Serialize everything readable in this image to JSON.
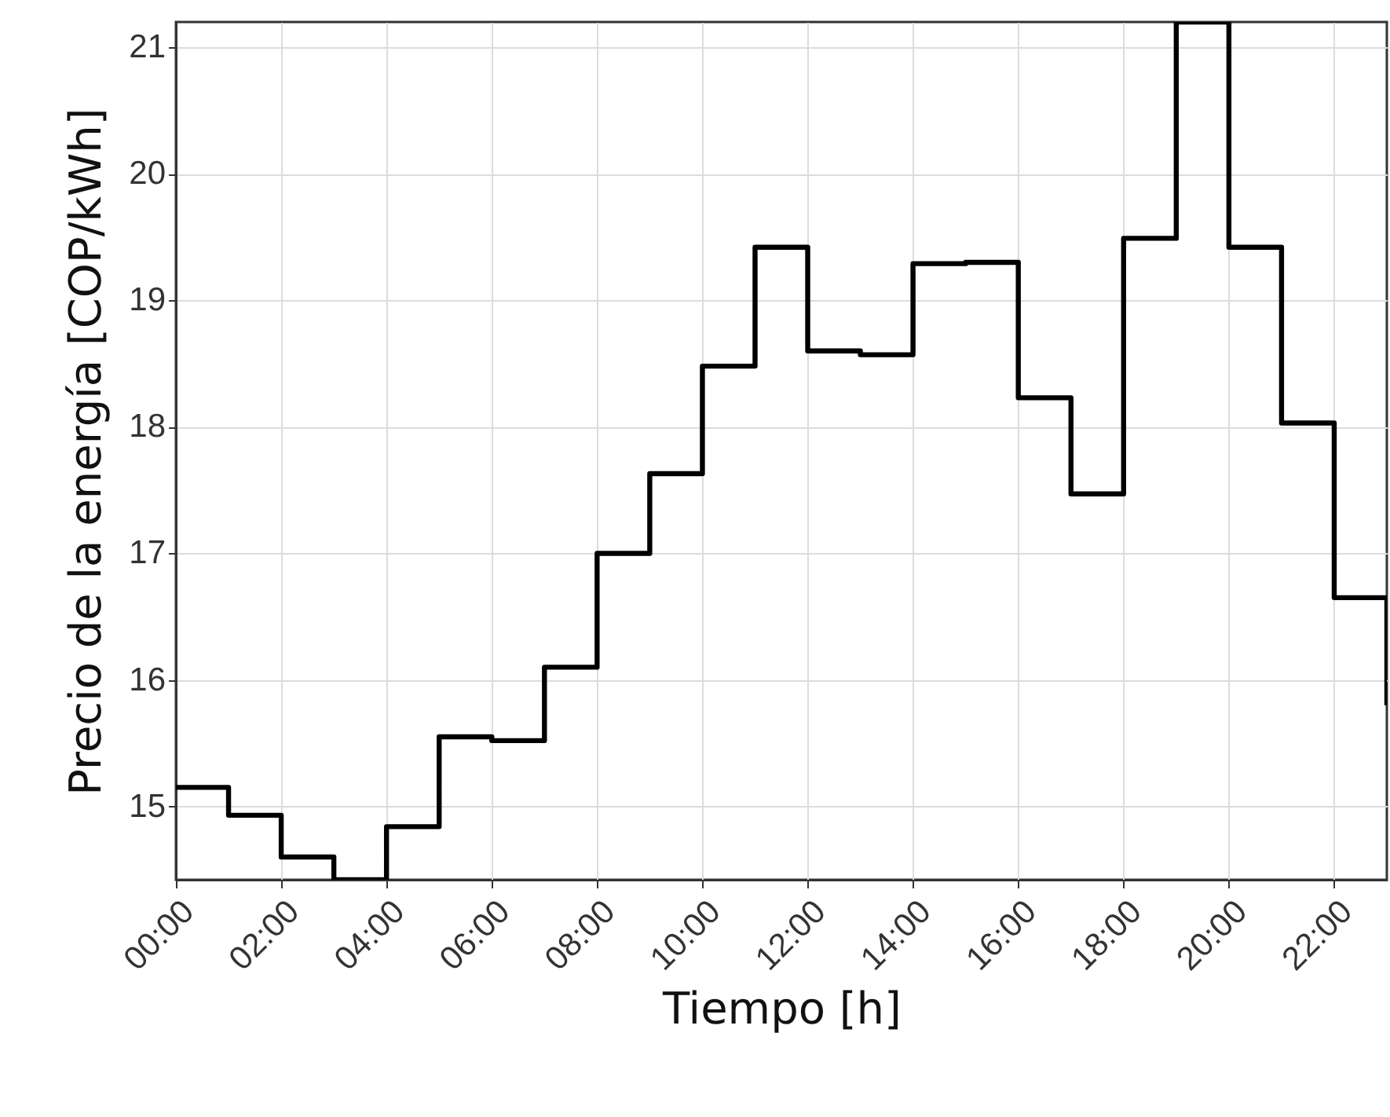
{
  "chart_data": {
    "type": "step",
    "xlabel": "Tiempo [h]",
    "ylabel": "Precio de la energía [COP/kWh]",
    "x": [
      0,
      1,
      2,
      3,
      4,
      5,
      6,
      7,
      8,
      9,
      10,
      11,
      12,
      13,
      14,
      15,
      16,
      17,
      18,
      19,
      20,
      21,
      22,
      23
    ],
    "series": [
      {
        "color": "#000000",
        "values": [
          15.15,
          14.93,
          14.6,
          14.42,
          14.84,
          15.55,
          15.52,
          16.1,
          17.0,
          17.63,
          18.48,
          19.42,
          18.6,
          18.57,
          19.29,
          19.3,
          18.23,
          17.47,
          19.49,
          21.2,
          19.42,
          18.03,
          16.65,
          15.8
        ]
      }
    ],
    "xlim": [
      0,
      23
    ],
    "xticks": [
      {
        "value": 0,
        "label": "00:00"
      },
      {
        "value": 2,
        "label": "02:00"
      },
      {
        "value": 4,
        "label": "04:00"
      },
      {
        "value": 6,
        "label": "06:00"
      },
      {
        "value": 8,
        "label": "08:00"
      },
      {
        "value": 10,
        "label": "10:00"
      },
      {
        "value": 12,
        "label": "12:00"
      },
      {
        "value": 14,
        "label": "14:00"
      },
      {
        "value": 16,
        "label": "16:00"
      },
      {
        "value": 18,
        "label": "18:00"
      },
      {
        "value": 20,
        "label": "20:00"
      },
      {
        "value": 22,
        "label": "22:00"
      }
    ],
    "ylim": [
      14.42,
      21.2
    ],
    "yticks": [
      15,
      16,
      17,
      18,
      19,
      20,
      21
    ],
    "grid": true
  }
}
